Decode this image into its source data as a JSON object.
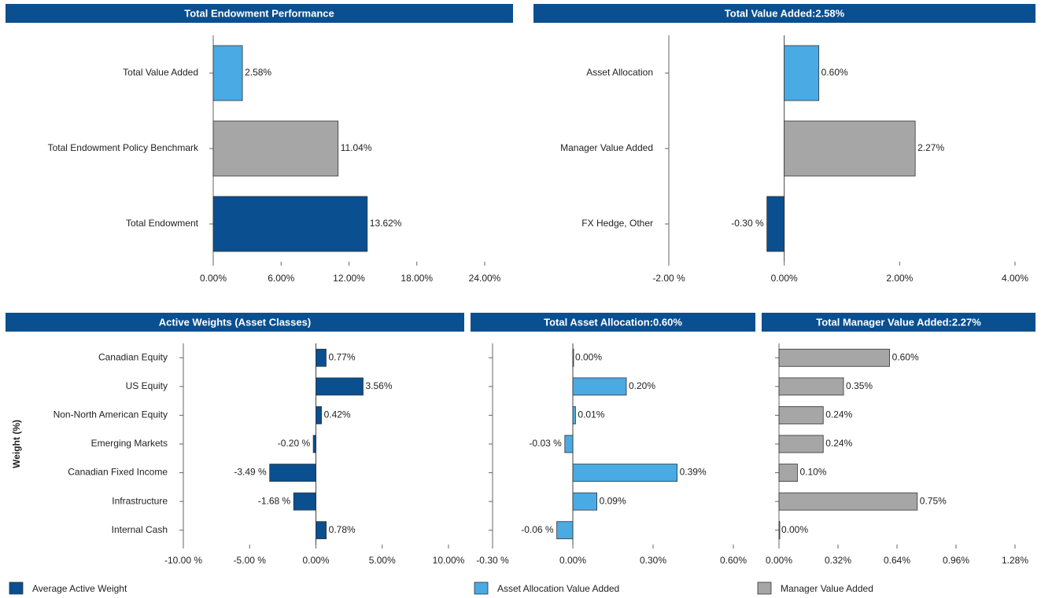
{
  "chart_data": [
    {
      "type": "bar",
      "orientation": "horizontal",
      "title": "Total Endowment Performance",
      "categories": [
        "Total Value Added",
        "Total Endowment Policy Benchmark",
        "Total Endowment"
      ],
      "values": [
        2.58,
        11.04,
        13.62
      ],
      "value_labels": [
        "2.58%",
        "11.04%",
        "13.62%"
      ],
      "colors": [
        "#4aaae3",
        "#a6a6a6",
        "#0a4f8f"
      ],
      "xlim": [
        0,
        24
      ],
      "xticks": [
        {
          "value": 0,
          "label": "0.00%"
        },
        {
          "value": 6,
          "label": "6.00%"
        },
        {
          "value": 12,
          "label": "12.00%"
        },
        {
          "value": 18,
          "label": "18.00%"
        },
        {
          "value": 24,
          "label": "24.00%"
        }
      ]
    },
    {
      "type": "bar",
      "orientation": "horizontal",
      "title": "Total Value Added:2.58%",
      "categories": [
        "Asset Allocation",
        "Manager Value Added",
        "FX Hedge, Other"
      ],
      "values": [
        0.6,
        2.27,
        -0.3
      ],
      "value_labels": [
        "0.60%",
        "2.27%",
        "-0.30 %"
      ],
      "colors": [
        "#4aaae3",
        "#a6a6a6",
        "#0a4f8f"
      ],
      "xlim": [
        -2,
        4
      ],
      "xticks": [
        {
          "value": -2,
          "label": "-2.00 %"
        },
        {
          "value": 0,
          "label": "0.00%"
        },
        {
          "value": 2,
          "label": "2.00%"
        },
        {
          "value": 4,
          "label": "4.00%"
        }
      ]
    },
    {
      "type": "bar",
      "orientation": "horizontal",
      "title": "Active Weights (Asset Classes)",
      "y_label": "Weight (%)",
      "categories": [
        "Canadian Equity",
        "US Equity",
        "Non-North American Equity",
        "Emerging Markets",
        "Canadian Fixed Income",
        "Infrastructure",
        "Internal Cash"
      ],
      "series": [
        {
          "name": "Average Active Weight",
          "color": "#0a4f8f",
          "values": [
            0.77,
            3.56,
            0.42,
            -0.2,
            -3.49,
            -1.68,
            0.78
          ],
          "value_labels": [
            "0.77%",
            "3.56%",
            "0.42%",
            "-0.20 %",
            "-3.49 %",
            "-1.68 %",
            "0.78%"
          ]
        }
      ],
      "xlim": [
        -10,
        10
      ],
      "xticks": [
        {
          "value": -10,
          "label": "-10.00 %"
        },
        {
          "value": -5,
          "label": "-5.00 %"
        },
        {
          "value": 0,
          "label": "0.00%"
        },
        {
          "value": 5,
          "label": "5.00%"
        },
        {
          "value": 10,
          "label": "10.00%"
        }
      ]
    },
    {
      "type": "bar",
      "orientation": "horizontal",
      "title": "Total Asset Allocation:0.60%",
      "series": [
        {
          "name": "Asset Allocation Value Added",
          "color": "#4aaae3",
          "values": [
            0.0,
            0.2,
            0.01,
            -0.03,
            0.39,
            0.09,
            -0.06
          ],
          "value_labels": [
            "0.00%",
            "0.20%",
            "0.01%",
            "-0.03 %",
            "0.39%",
            "0.09%",
            "-0.06 %"
          ]
        }
      ],
      "xlim": [
        -0.3,
        0.6
      ],
      "xticks": [
        {
          "value": -0.3,
          "label": "-0.30 %"
        },
        {
          "value": 0,
          "label": "0.00%"
        },
        {
          "value": 0.3,
          "label": "0.30%"
        },
        {
          "value": 0.6,
          "label": "0.60%"
        }
      ]
    },
    {
      "type": "bar",
      "orientation": "horizontal",
      "title": "Total Manager Value Added:2.27%",
      "series": [
        {
          "name": "Manager Value Added",
          "color": "#a6a6a6",
          "values": [
            0.6,
            0.35,
            0.24,
            0.24,
            0.1,
            0.75,
            0.0
          ],
          "value_labels": [
            "0.60%",
            "0.35%",
            "0.24%",
            "0.24%",
            "0.10%",
            "0.75%",
            "0.00%"
          ]
        }
      ],
      "xlim": [
        0,
        1.28
      ],
      "xticks": [
        {
          "value": 0,
          "label": "0.00%"
        },
        {
          "value": 0.32,
          "label": "0.32%"
        },
        {
          "value": 0.64,
          "label": "0.64%"
        },
        {
          "value": 0.96,
          "label": "0.96%"
        },
        {
          "value": 1.28,
          "label": "1.28%"
        }
      ]
    }
  ]
}
